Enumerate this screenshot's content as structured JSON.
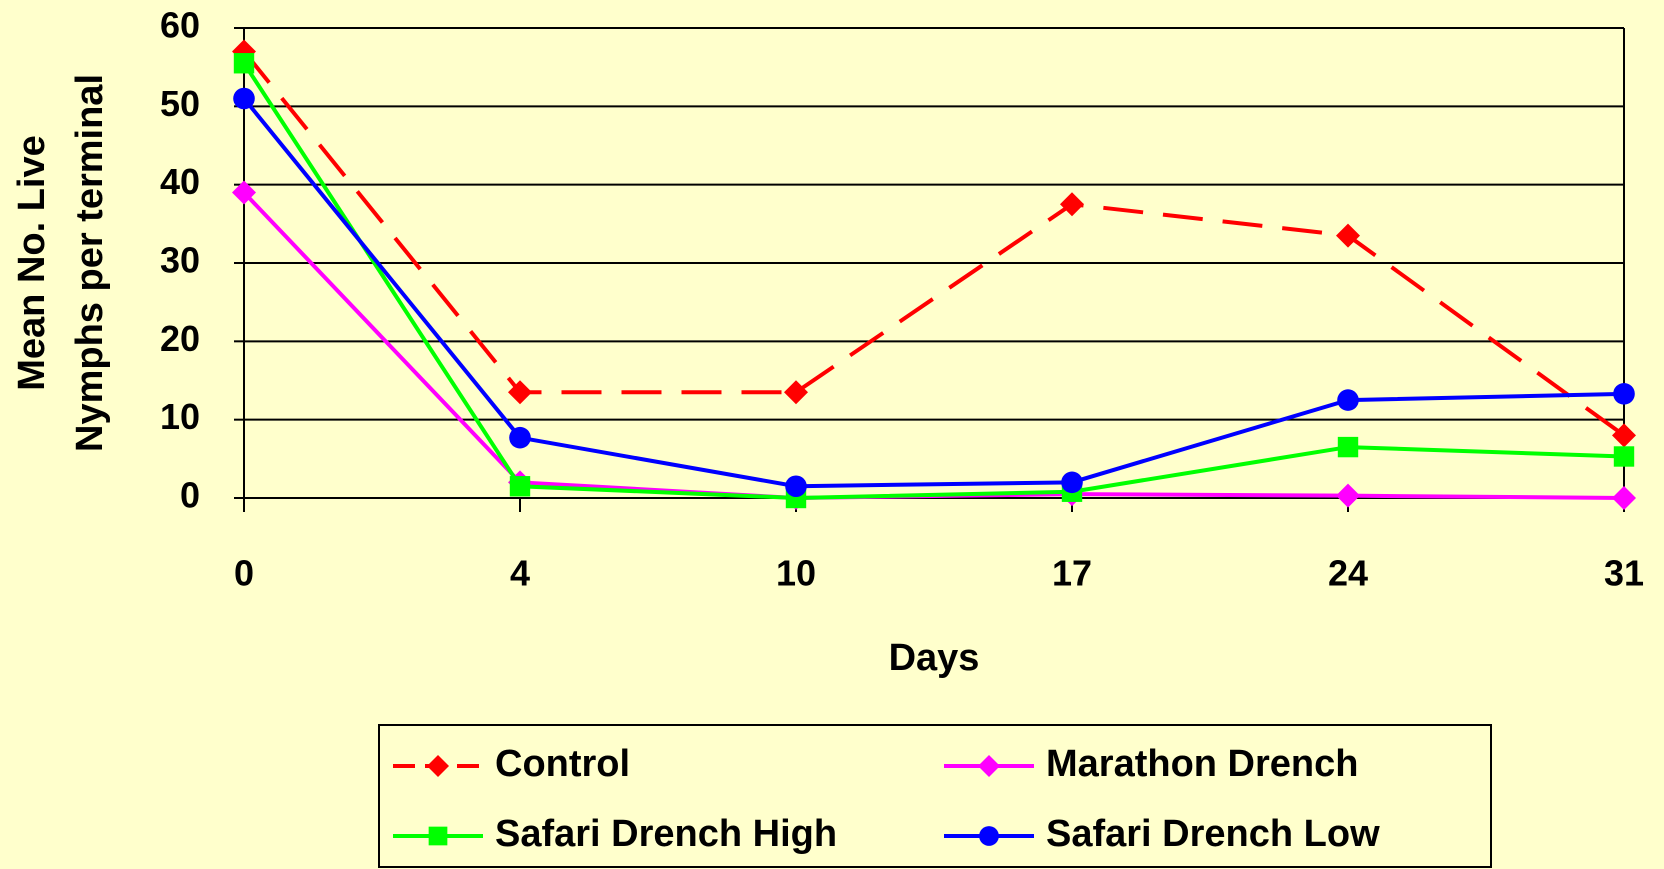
{
  "chart_data": {
    "type": "line",
    "ylabel": [
      "Mean No. Live",
      "Nymphs per terminal"
    ],
    "xlabel": "Days",
    "categories": [
      "0",
      "4",
      "10",
      "17",
      "24",
      "31"
    ],
    "series": [
      {
        "name": "Control",
        "color": "#FF0000",
        "marker": "diamond",
        "dash": true,
        "values": [
          57,
          13.5,
          13.5,
          37.5,
          33.5,
          8
        ]
      },
      {
        "name": "Marathon Drench",
        "color": "#FF00FF",
        "marker": "diamond",
        "dash": false,
        "values": [
          39,
          2,
          0,
          0.5,
          0.3,
          0
        ]
      },
      {
        "name": "Safari Drench High",
        "color": "#00FF00",
        "marker": "square",
        "dash": false,
        "values": [
          55.5,
          1.5,
          0,
          0.8,
          6.5,
          5.3
        ]
      },
      {
        "name": "Safari Drench Low",
        "color": "#0000FF",
        "marker": "circle",
        "dash": false,
        "values": [
          51,
          7.7,
          1.5,
          2,
          12.5,
          13.3
        ]
      }
    ],
    "ylim": [
      0,
      60
    ],
    "yticks": [
      0,
      10,
      20,
      30,
      40,
      50,
      60
    ],
    "grid": true
  }
}
